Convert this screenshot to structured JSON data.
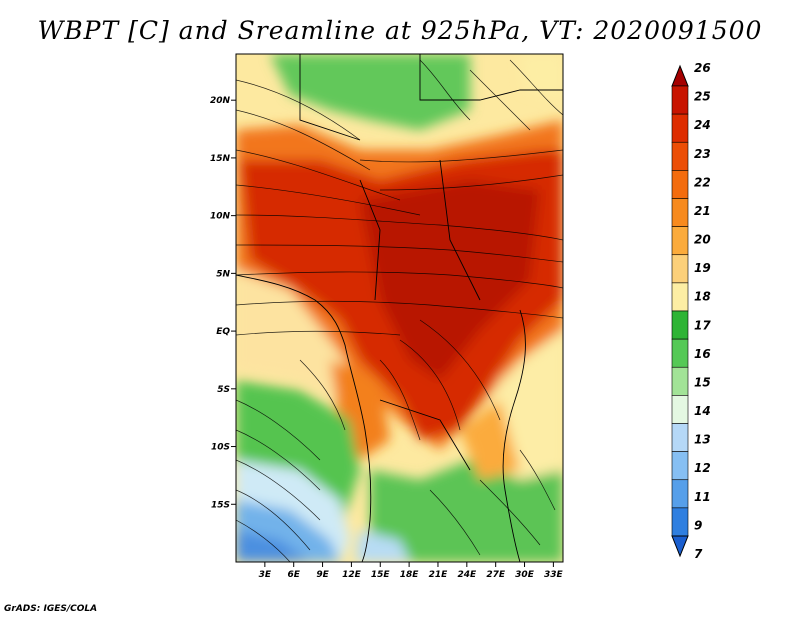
{
  "title": "WBPT [C] and Sreamline at 925hPa, VT: 2020091500",
  "footer": "GrADS: IGES/COLA",
  "map": {
    "lat_labels": [
      "20N",
      "15N",
      "10N",
      "5N",
      "EQ",
      "5S",
      "10S",
      "15S"
    ],
    "lat_values": [
      20,
      15,
      10,
      5,
      0,
      -5,
      -10,
      -15
    ],
    "lon_labels": [
      "3E",
      "6E",
      "9E",
      "12E",
      "15E",
      "18E",
      "21E",
      "24E",
      "27E",
      "30E",
      "33E"
    ],
    "lon_values": [
      3,
      6,
      9,
      12,
      15,
      18,
      21,
      24,
      27,
      30,
      33
    ],
    "lon_range": [
      0,
      34
    ],
    "lat_range": [
      -20,
      24
    ]
  },
  "colorbar": {
    "labels": [
      "26",
      "25",
      "24",
      "23",
      "22",
      "21",
      "20",
      "19",
      "18",
      "17",
      "16",
      "15",
      "14",
      "13",
      "12",
      "11",
      "9",
      "7"
    ],
    "colors": [
      "#a50000",
      "#c81400",
      "#de2d00",
      "#ec4e06",
      "#f36c0e",
      "#f78a1e",
      "#fbab3c",
      "#fcd07a",
      "#fdeea4",
      "#2eb435",
      "#55c956",
      "#a2e397",
      "#e4f8e2",
      "#b5d8f7",
      "#86bff3",
      "#569fea",
      "#2f7fe0",
      "#1a5fd0"
    ]
  }
}
